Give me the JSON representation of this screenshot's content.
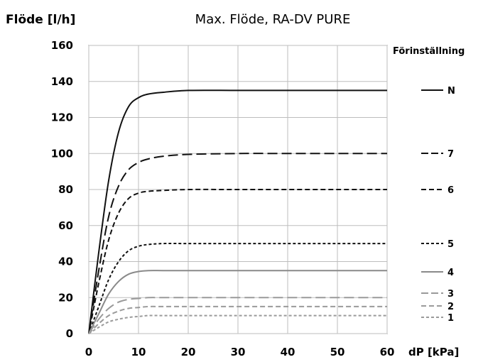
{
  "chart_data": {
    "type": "line",
    "title": "Max. Flöde, RA-DV PURE",
    "xlabel": "dP [kPa]",
    "ylabel": "Flöde [l/h]",
    "xlim": [
      0,
      60
    ],
    "ylim": [
      0,
      160
    ],
    "x_ticks": [
      "0",
      "10",
      "20",
      "30",
      "40",
      "50",
      "60"
    ],
    "y_ticks": [
      "0",
      "20",
      "40",
      "60",
      "80",
      "100",
      "120",
      "140",
      "160"
    ],
    "grid": true,
    "legend_title": "Förinställning",
    "legend_position": "right",
    "series": [
      {
        "name": "N",
        "color": "#111111",
        "style": "solid",
        "x": [
          0,
          2,
          4,
          6,
          8,
          10,
          12,
          15,
          20,
          30,
          40,
          50,
          60
        ],
        "y": [
          0,
          45,
          85,
          112,
          126,
          131,
          133,
          134,
          135,
          135,
          135,
          135,
          135
        ]
      },
      {
        "name": "7",
        "color": "#111111",
        "style": "longdash",
        "x": [
          0,
          2,
          4,
          6,
          8,
          10,
          12,
          15,
          20,
          30,
          40,
          50,
          60
        ],
        "y": [
          0,
          35,
          65,
          82,
          91,
          95,
          97,
          98.5,
          99.5,
          100,
          100,
          100,
          100
        ]
      },
      {
        "name": "6",
        "color": "#111111",
        "style": "dash",
        "x": [
          0,
          2,
          4,
          6,
          8,
          10,
          12,
          15,
          20,
          30,
          40,
          50,
          60
        ],
        "y": [
          0,
          28,
          52,
          67,
          75,
          78,
          79,
          79.5,
          80,
          80,
          80,
          80,
          80
        ]
      },
      {
        "name": "5",
        "color": "#111111",
        "style": "shortdash",
        "x": [
          0,
          2,
          4,
          6,
          8,
          10,
          12,
          15,
          20,
          30,
          40,
          50,
          60
        ],
        "y": [
          0,
          15,
          30,
          40,
          46,
          48.5,
          49.5,
          50,
          50,
          50,
          50,
          50,
          50
        ]
      },
      {
        "name": "4",
        "color": "#8a8a8a",
        "style": "solid",
        "x": [
          0,
          2,
          4,
          6,
          8,
          10,
          12,
          15,
          20,
          30,
          40,
          50,
          60
        ],
        "y": [
          0,
          11,
          22,
          29,
          33,
          34.5,
          35,
          35,
          35,
          35,
          35,
          35,
          35
        ]
      },
      {
        "name": "3",
        "color": "#9a9a9a",
        "style": "longdash",
        "x": [
          0,
          2,
          4,
          6,
          8,
          10,
          12,
          15,
          20,
          30,
          40,
          50,
          60
        ],
        "y": [
          0,
          8,
          14,
          17.5,
          19,
          19.5,
          20,
          20,
          20,
          20,
          20,
          20,
          20
        ]
      },
      {
        "name": "2",
        "color": "#9a9a9a",
        "style": "dash",
        "x": [
          0,
          2,
          4,
          6,
          8,
          10,
          12,
          15,
          20,
          30,
          40,
          50,
          60
        ],
        "y": [
          0,
          5.5,
          10,
          12.5,
          14,
          14.5,
          15,
          15,
          15,
          15,
          15,
          15,
          15
        ]
      },
      {
        "name": "1",
        "color": "#9a9a9a",
        "style": "shortdash",
        "x": [
          0,
          2,
          4,
          6,
          8,
          10,
          12,
          15,
          20,
          30,
          40,
          50,
          60
        ],
        "y": [
          0,
          3.5,
          6.5,
          8,
          9,
          9.5,
          10,
          10,
          10,
          10,
          10,
          10,
          10
        ]
      }
    ]
  }
}
